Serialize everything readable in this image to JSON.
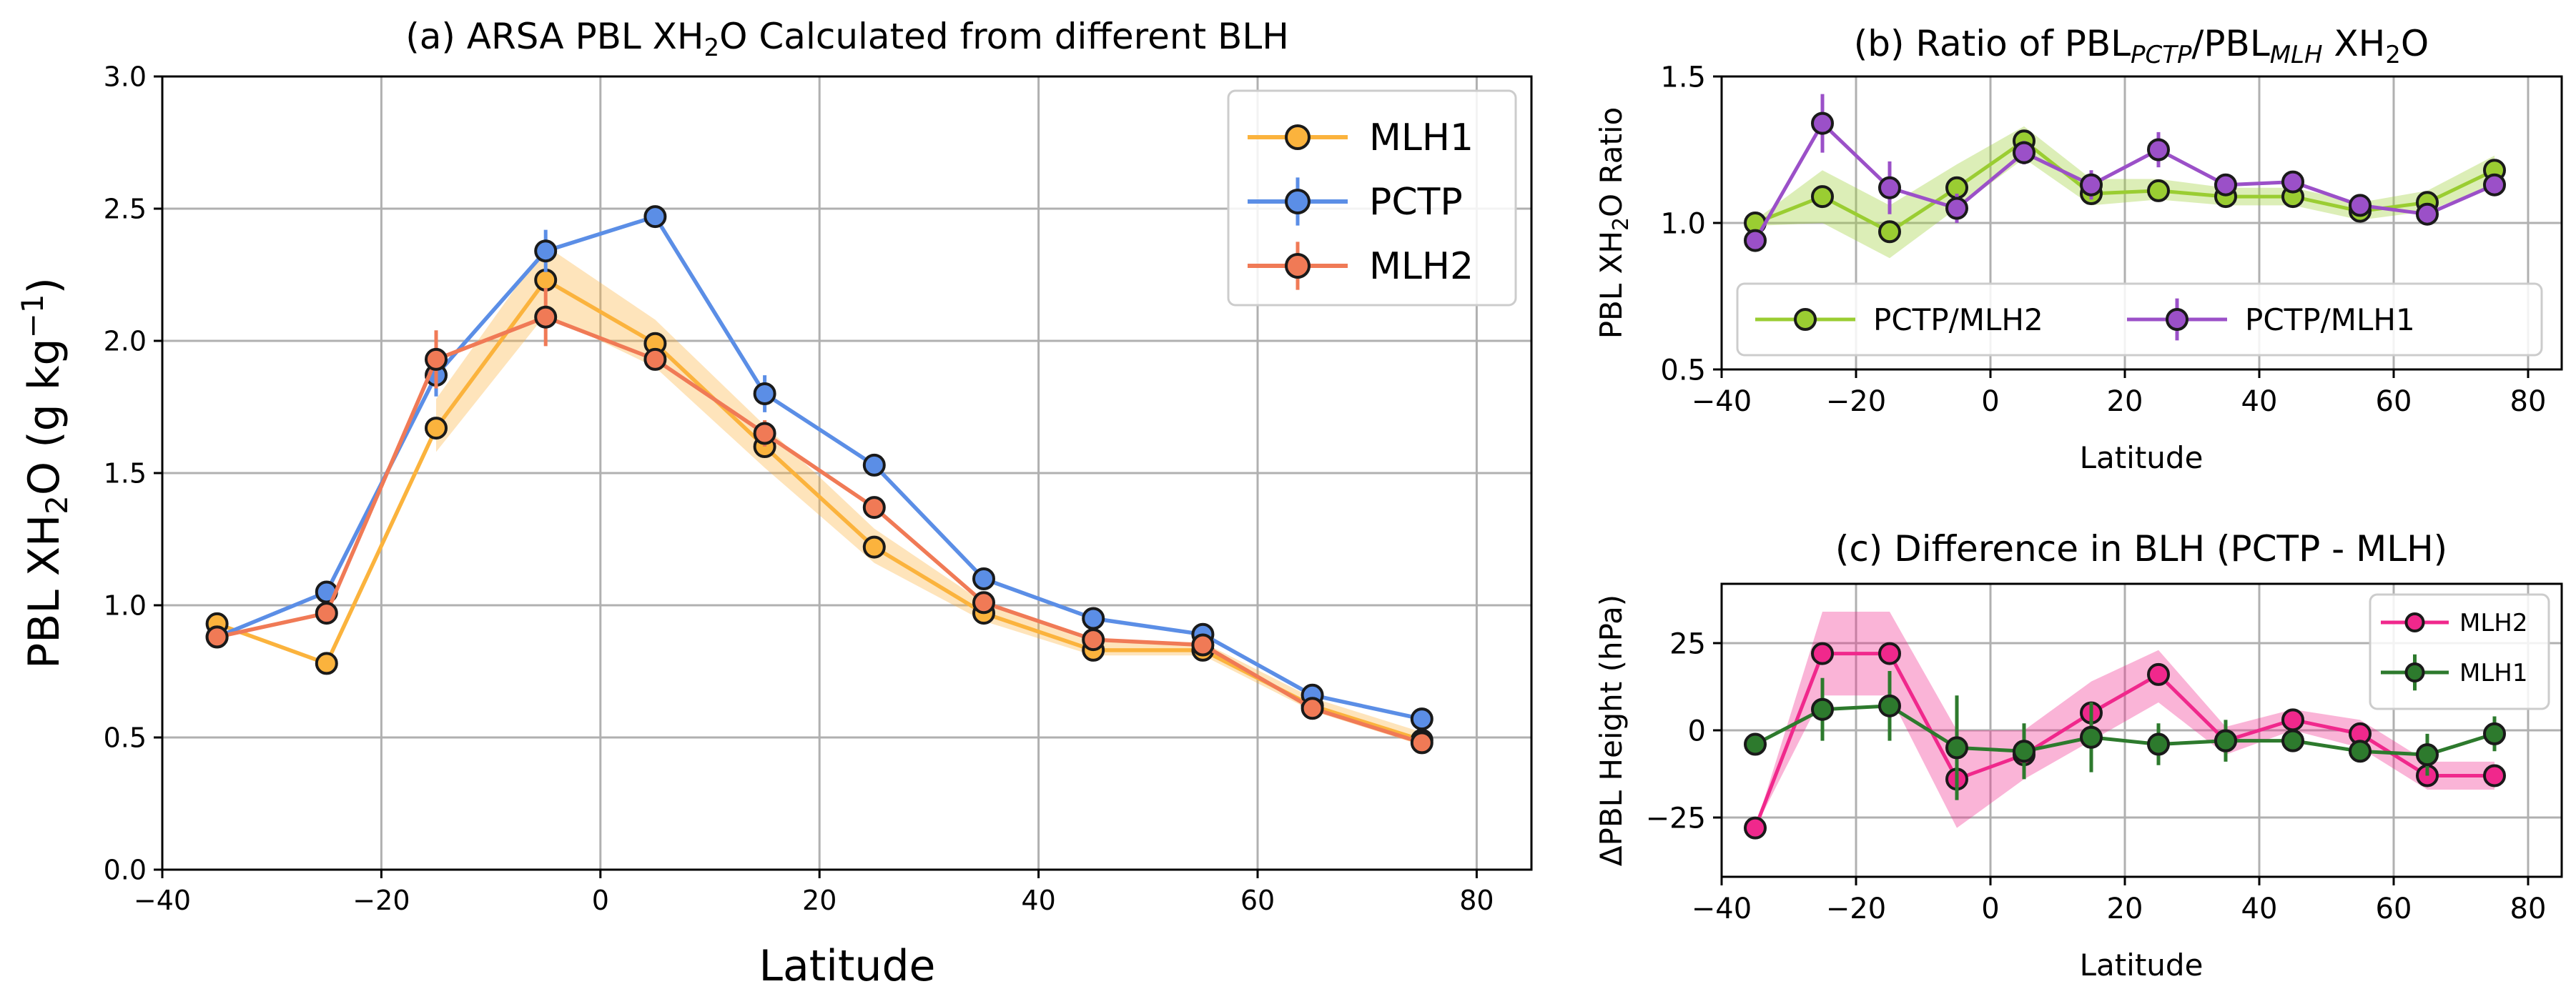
{
  "chart_data": [
    {
      "id": "a",
      "type": "line",
      "title_parts": [
        "(a) ARSA PBL XH",
        "2",
        "O Calculated from different BLH"
      ],
      "xlabel": "Latitude",
      "ylabel_parts": [
        "PBL XH",
        "2",
        "O (g kg",
        "−1",
        ")"
      ],
      "xlim": [
        -40,
        85
      ],
      "ylim": [
        0,
        3.0
      ],
      "xticks": [
        -40,
        -20,
        0,
        20,
        40,
        60,
        80
      ],
      "xtick_labels": [
        "−40",
        "−20",
        "0",
        "20",
        "40",
        "60",
        "80"
      ],
      "yticks": [
        0,
        0.5,
        1.0,
        1.5,
        2.0,
        2.5,
        3.0
      ],
      "ytick_labels": [
        "0.0",
        "0.5",
        "1.0",
        "1.5",
        "2.0",
        "2.5",
        "3.0"
      ],
      "grid": true,
      "legend_position": "upper right",
      "series": [
        {
          "name": "MLH1",
          "color": "#fbb33d",
          "x": [
            -35,
            -25,
            -15,
            -5,
            5,
            15,
            25,
            35,
            45,
            55,
            65,
            75
          ],
          "y": [
            0.93,
            0.78,
            1.67,
            2.23,
            1.99,
            1.6,
            1.22,
            0.97,
            0.83,
            0.83,
            0.62,
            0.49
          ],
          "band_low": [
            null,
            null,
            1.58,
            2.1,
            1.9,
            1.52,
            1.16,
            0.94,
            0.81,
            0.81,
            0.6,
            0.47
          ],
          "band_high": [
            null,
            null,
            1.78,
            2.36,
            2.08,
            1.68,
            1.29,
            1.01,
            0.86,
            0.86,
            0.65,
            0.52
          ]
        },
        {
          "name": "PCTP",
          "color": "#5b8ee6",
          "x": [
            -35,
            -25,
            -15,
            -5,
            5,
            15,
            25,
            35,
            45,
            55,
            65,
            75
          ],
          "y": [
            0.88,
            1.05,
            1.87,
            2.34,
            2.47,
            1.8,
            1.53,
            1.1,
            0.95,
            0.89,
            0.66,
            0.57
          ],
          "err": [
            0.02,
            0.03,
            0.08,
            0.08,
            0.03,
            0.07,
            0.03,
            0.03,
            0.03,
            0.03,
            0.02,
            0.02
          ]
        },
        {
          "name": "MLH2",
          "color": "#f07a56",
          "x": [
            -35,
            -25,
            -15,
            -5,
            5,
            15,
            25,
            35,
            45,
            55,
            65,
            75
          ],
          "y": [
            0.88,
            0.97,
            1.93,
            2.09,
            1.93,
            1.65,
            1.37,
            1.01,
            0.87,
            0.85,
            0.61,
            0.48
          ],
          "err": [
            0.02,
            0.03,
            0.11,
            0.11,
            0.04,
            0.05,
            0.04,
            0.03,
            0.02,
            0.02,
            0.02,
            0.02
          ]
        }
      ]
    },
    {
      "id": "b",
      "type": "line",
      "title_parts": [
        "(b) Ratio of PBL",
        "PCTP",
        "/PBL",
        "MLH",
        " XH",
        "2",
        "O"
      ],
      "xlabel": "Latitude",
      "ylabel_parts": [
        "PBL XH",
        "2",
        "O Ratio"
      ],
      "xlim": [
        -40,
        85
      ],
      "ylim": [
        0.5,
        1.5
      ],
      "xticks": [
        -40,
        -20,
        0,
        20,
        40,
        60,
        80
      ],
      "xtick_labels": [
        "−40",
        "−20",
        "0",
        "20",
        "40",
        "60",
        "80"
      ],
      "yticks": [
        0.5,
        1.0,
        1.5
      ],
      "ytick_labels": [
        "0.5",
        "1.0",
        "1.5"
      ],
      "grid": true,
      "legend_position": "lower center",
      "series": [
        {
          "name": "PCTP/MLH2",
          "color": "#9acd32",
          "x": [
            -35,
            -25,
            -15,
            -5,
            5,
            15,
            25,
            35,
            45,
            55,
            65,
            75
          ],
          "y": [
            1.0,
            1.09,
            0.97,
            1.12,
            1.28,
            1.1,
            1.11,
            1.09,
            1.09,
            1.04,
            1.07,
            1.18
          ],
          "band_low": [
            0.99,
            1.0,
            0.88,
            1.05,
            1.22,
            1.06,
            1.08,
            1.06,
            1.06,
            1.01,
            1.04,
            1.13
          ],
          "band_high": [
            1.01,
            1.18,
            1.06,
            1.2,
            1.33,
            1.15,
            1.15,
            1.12,
            1.12,
            1.07,
            1.11,
            1.23
          ]
        },
        {
          "name": "PCTP/MLH1",
          "color": "#9b50c8",
          "x": [
            -35,
            -25,
            -15,
            -5,
            5,
            15,
            25,
            35,
            45,
            55,
            65,
            75
          ],
          "y": [
            0.94,
            1.34,
            1.12,
            1.05,
            1.24,
            1.13,
            1.25,
            1.13,
            1.14,
            1.06,
            1.03,
            1.13
          ],
          "err": [
            0.02,
            0.1,
            0.09,
            0.05,
            0.04,
            0.05,
            0.06,
            0.03,
            0.03,
            0.02,
            0.02,
            0.02
          ]
        }
      ]
    },
    {
      "id": "c",
      "type": "line",
      "title": "(c) Difference in BLH (PCTP - MLH)",
      "xlabel": "Latitude",
      "ylabel": "ΔPBL Height (hPa)",
      "xlim": [
        -40,
        85
      ],
      "ylim": [
        -42,
        42
      ],
      "xticks": [
        -40,
        -20,
        0,
        20,
        40,
        60,
        80
      ],
      "xtick_labels": [
        "−40",
        "−20",
        "0",
        "20",
        "40",
        "60",
        "80"
      ],
      "yticks": [
        -25,
        0,
        25
      ],
      "ytick_labels": [
        "−25",
        "0",
        "25"
      ],
      "grid": true,
      "legend_position": "upper right",
      "series": [
        {
          "name": "MLH2",
          "color": "#f0288c",
          "x": [
            -35,
            -25,
            -15,
            -5,
            5,
            15,
            25,
            35,
            45,
            55,
            65,
            75
          ],
          "y": [
            -28,
            22,
            22,
            -14,
            -7,
            5,
            16,
            -3,
            3,
            -1,
            -13,
            -13
          ],
          "band_low": [
            -28,
            10,
            10,
            -28,
            -14,
            -3,
            8,
            -7,
            0,
            -5,
            -17,
            -17
          ],
          "band_high": [
            -28,
            34,
            34,
            0,
            0,
            14,
            23,
            1,
            6,
            3,
            -9,
            -9
          ]
        },
        {
          "name": "MLH1",
          "color": "#2d7a2d",
          "x": [
            -35,
            -25,
            -15,
            -5,
            5,
            15,
            25,
            35,
            45,
            55,
            65,
            75
          ],
          "y": [
            -4,
            6,
            7,
            -5,
            -6,
            -2,
            -4,
            -3,
            -3,
            -6,
            -7,
            -1
          ],
          "err": [
            0,
            9,
            10,
            15,
            8,
            10,
            6,
            6,
            3,
            3,
            6,
            5
          ]
        }
      ]
    }
  ]
}
